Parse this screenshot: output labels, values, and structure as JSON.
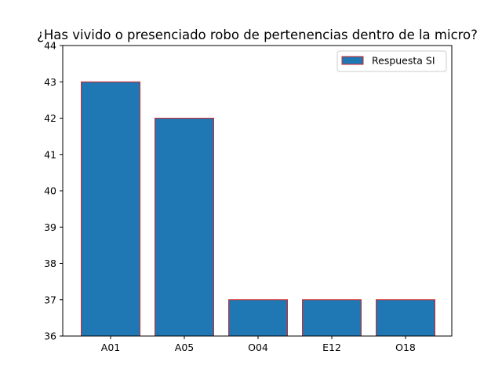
{
  "chart_data": {
    "type": "bar",
    "title": "¿Has vivido o presenciado robo de pertenencias dentro de la micro?",
    "xlabel": "",
    "ylabel": "",
    "categories": [
      "A01",
      "A05",
      "O04",
      "E12",
      "O18"
    ],
    "series": [
      {
        "name": "Respuesta SI",
        "values": [
          43,
          42,
          37,
          37,
          37
        ],
        "fill_color": "#1f77b4",
        "edge_color": "#d62728"
      }
    ],
    "ylim": [
      36,
      44
    ],
    "yticks": [
      36,
      37,
      38,
      39,
      40,
      41,
      42,
      43,
      44
    ],
    "grid": false,
    "legend_position": "top-right"
  }
}
